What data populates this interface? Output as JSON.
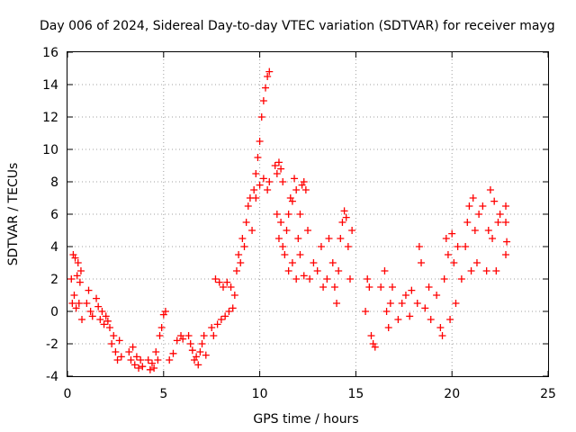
{
  "chart_data": {
    "type": "scatter",
    "title": "Day 006 of 2024, Sidereal Day-to-day VTEC variation (SDTVAR) for receiver mayg",
    "xlabel": "GPS time / hours",
    "ylabel": "SDTVAR / TECUs",
    "xlim": [
      0,
      25
    ],
    "ylim": [
      -4,
      16
    ],
    "xticks": [
      0,
      5,
      10,
      15,
      20,
      25
    ],
    "yticks": [
      -4,
      -2,
      0,
      2,
      4,
      6,
      8,
      10,
      12,
      14,
      16
    ],
    "grid": true,
    "marker": "+",
    "color": "#ff0000",
    "series": [
      {
        "name": "SDTVAR",
        "points": [
          [
            0.2,
            2.0
          ],
          [
            0.25,
            0.5
          ],
          [
            0.3,
            3.5
          ],
          [
            0.35,
            1.0
          ],
          [
            0.4,
            3.3
          ],
          [
            0.45,
            0.2
          ],
          [
            0.5,
            2.2
          ],
          [
            0.55,
            3.0
          ],
          [
            0.6,
            0.5
          ],
          [
            0.65,
            1.8
          ],
          [
            0.7,
            2.5
          ],
          [
            0.75,
            -0.5
          ],
          [
            1.0,
            0.5
          ],
          [
            1.1,
            1.3
          ],
          [
            1.2,
            0.0
          ],
          [
            1.3,
            -0.3
          ],
          [
            1.5,
            0.8
          ],
          [
            1.6,
            0.3
          ],
          [
            1.7,
            -0.5
          ],
          [
            1.8,
            0.0
          ],
          [
            1.9,
            -0.8
          ],
          [
            2.0,
            -0.3
          ],
          [
            2.1,
            -0.6
          ],
          [
            2.2,
            -1.0
          ],
          [
            2.3,
            -2.0
          ],
          [
            2.4,
            -1.5
          ],
          [
            2.5,
            -2.5
          ],
          [
            2.6,
            -3.0
          ],
          [
            2.7,
            -1.8
          ],
          [
            2.8,
            -2.8
          ],
          [
            3.2,
            -2.5
          ],
          [
            3.3,
            -3.0
          ],
          [
            3.4,
            -2.2
          ],
          [
            3.5,
            -3.3
          ],
          [
            3.6,
            -2.8
          ],
          [
            3.7,
            -3.5
          ],
          [
            3.8,
            -3.0
          ],
          [
            3.9,
            -3.4
          ],
          [
            4.2,
            -3.0
          ],
          [
            4.3,
            -3.6
          ],
          [
            4.4,
            -3.2
          ],
          [
            4.5,
            -3.5
          ],
          [
            4.6,
            -2.5
          ],
          [
            4.7,
            -3.0
          ],
          [
            4.8,
            -1.5
          ],
          [
            4.9,
            -1.0
          ],
          [
            5.0,
            -0.2
          ],
          [
            5.1,
            0.0
          ],
          [
            5.3,
            -3.0
          ],
          [
            5.5,
            -2.6
          ],
          [
            5.7,
            -1.8
          ],
          [
            5.9,
            -1.5
          ],
          [
            6.0,
            -1.7
          ],
          [
            6.3,
            -1.5
          ],
          [
            6.4,
            -2.0
          ],
          [
            6.5,
            -2.4
          ],
          [
            6.6,
            -3.0
          ],
          [
            6.7,
            -2.8
          ],
          [
            6.8,
            -3.3
          ],
          [
            6.9,
            -2.5
          ],
          [
            7.0,
            -2.0
          ],
          [
            7.1,
            -1.5
          ],
          [
            7.2,
            -2.7
          ],
          [
            7.5,
            -1.0
          ],
          [
            7.6,
            -1.5
          ],
          [
            7.7,
            2.0
          ],
          [
            7.8,
            -0.8
          ],
          [
            7.9,
            1.8
          ],
          [
            8.0,
            -0.5
          ],
          [
            8.1,
            1.5
          ],
          [
            8.2,
            -0.3
          ],
          [
            8.3,
            1.8
          ],
          [
            8.4,
            0.0
          ],
          [
            8.5,
            1.5
          ],
          [
            8.6,
            0.2
          ],
          [
            8.7,
            1.0
          ],
          [
            8.8,
            2.5
          ],
          [
            8.9,
            3.5
          ],
          [
            9.0,
            3.0
          ],
          [
            9.1,
            4.5
          ],
          [
            9.2,
            4.0
          ],
          [
            9.3,
            5.5
          ],
          [
            9.4,
            6.5
          ],
          [
            9.5,
            7.0
          ],
          [
            9.6,
            5.0
          ],
          [
            9.7,
            7.5
          ],
          [
            9.8,
            8.5
          ],
          [
            9.9,
            9.5
          ],
          [
            10.0,
            10.5
          ],
          [
            10.1,
            12.0
          ],
          [
            10.2,
            13.0
          ],
          [
            10.3,
            13.8
          ],
          [
            10.4,
            14.5
          ],
          [
            10.5,
            14.8
          ],
          [
            9.8,
            7.0
          ],
          [
            10.0,
            7.8
          ],
          [
            10.2,
            8.2
          ],
          [
            10.4,
            7.5
          ],
          [
            10.5,
            8.0
          ],
          [
            10.8,
            9.0
          ],
          [
            10.9,
            8.5
          ],
          [
            11.0,
            9.2
          ],
          [
            11.1,
            8.8
          ],
          [
            11.2,
            8.0
          ],
          [
            10.9,
            6.0
          ],
          [
            11.0,
            4.5
          ],
          [
            11.1,
            5.5
          ],
          [
            11.2,
            4.0
          ],
          [
            11.3,
            3.5
          ],
          [
            11.4,
            5.0
          ],
          [
            11.5,
            6.0
          ],
          [
            11.6,
            7.0
          ],
          [
            11.7,
            6.8
          ],
          [
            11.8,
            8.2
          ],
          [
            11.9,
            7.5
          ],
          [
            11.5,
            2.5
          ],
          [
            11.7,
            3.0
          ],
          [
            11.9,
            2.0
          ],
          [
            12.1,
            3.5
          ],
          [
            12.3,
            2.2
          ],
          [
            12.0,
            4.5
          ],
          [
            12.1,
            6.0
          ],
          [
            12.2,
            7.8
          ],
          [
            12.3,
            8.0
          ],
          [
            12.4,
            7.5
          ],
          [
            12.5,
            5.0
          ],
          [
            12.6,
            2.0
          ],
          [
            12.8,
            3.0
          ],
          [
            13.0,
            2.5
          ],
          [
            13.2,
            4.0
          ],
          [
            13.3,
            1.5
          ],
          [
            13.5,
            2.0
          ],
          [
            13.6,
            4.5
          ],
          [
            13.8,
            3.0
          ],
          [
            13.9,
            1.5
          ],
          [
            14.0,
            0.5
          ],
          [
            14.1,
            2.5
          ],
          [
            14.2,
            4.5
          ],
          [
            14.3,
            5.5
          ],
          [
            14.4,
            6.2
          ],
          [
            14.5,
            5.8
          ],
          [
            14.6,
            4.0
          ],
          [
            14.7,
            2.0
          ],
          [
            14.8,
            5.0
          ],
          [
            15.5,
            0.0
          ],
          [
            15.6,
            2.0
          ],
          [
            15.7,
            1.5
          ],
          [
            15.8,
            -1.5
          ],
          [
            15.9,
            -2.0
          ],
          [
            16.0,
            -2.2
          ],
          [
            16.3,
            1.5
          ],
          [
            16.5,
            2.5
          ],
          [
            16.6,
            0.0
          ],
          [
            16.7,
            -1.0
          ],
          [
            16.8,
            0.5
          ],
          [
            16.9,
            1.5
          ],
          [
            17.2,
            -0.5
          ],
          [
            17.4,
            0.5
          ],
          [
            17.6,
            1.0
          ],
          [
            17.8,
            -0.3
          ],
          [
            17.9,
            1.3
          ],
          [
            18.2,
            0.5
          ],
          [
            18.3,
            4.0
          ],
          [
            18.4,
            3.0
          ],
          [
            18.6,
            0.2
          ],
          [
            18.8,
            1.5
          ],
          [
            18.9,
            -0.5
          ],
          [
            19.2,
            1.0
          ],
          [
            19.4,
            -1.0
          ],
          [
            19.5,
            -1.5
          ],
          [
            19.6,
            2.0
          ],
          [
            19.7,
            4.5
          ],
          [
            19.8,
            3.5
          ],
          [
            19.9,
            -0.5
          ],
          [
            20.0,
            4.8
          ],
          [
            20.1,
            3.0
          ],
          [
            20.2,
            0.5
          ],
          [
            20.3,
            4.0
          ],
          [
            20.5,
            2.0
          ],
          [
            20.7,
            4.0
          ],
          [
            20.8,
            5.5
          ],
          [
            20.9,
            6.5
          ],
          [
            21.0,
            2.5
          ],
          [
            21.1,
            7.0
          ],
          [
            21.2,
            5.0
          ],
          [
            21.3,
            3.0
          ],
          [
            21.4,
            6.0
          ],
          [
            21.6,
            6.5
          ],
          [
            21.8,
            2.5
          ],
          [
            21.9,
            5.0
          ],
          [
            22.0,
            7.5
          ],
          [
            22.1,
            4.5
          ],
          [
            22.2,
            6.8
          ],
          [
            22.3,
            2.5
          ],
          [
            22.4,
            5.5
          ],
          [
            22.5,
            6.0
          ],
          [
            22.8,
            6.5
          ],
          [
            22.8,
            5.5
          ],
          [
            22.8,
            3.5
          ],
          [
            22.85,
            4.3
          ]
        ]
      }
    ]
  }
}
